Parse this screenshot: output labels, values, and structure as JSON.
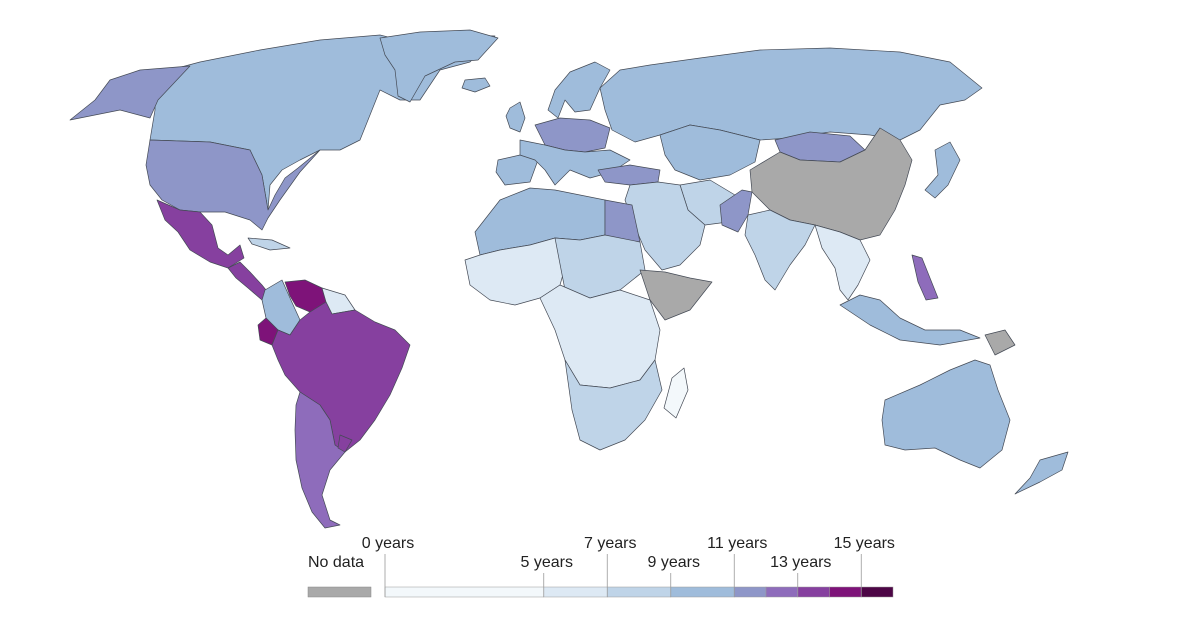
{
  "legend": {
    "no_data_label": "No data",
    "no_data_color": "#a9a9a9",
    "tick_labels": [
      "0 years",
      "5 years",
      "7 years",
      "9 years",
      "11 years",
      "13 years",
      "15 years"
    ],
    "bins": [
      {
        "from": 0,
        "to": 5,
        "color": "#f3f8fb"
      },
      {
        "from": 5,
        "to": 7,
        "color": "#dde9f4"
      },
      {
        "from": 7,
        "to": 9,
        "color": "#bfd4e8"
      },
      {
        "from": 9,
        "to": 11,
        "color": "#9fbcdb"
      },
      {
        "from": 11,
        "to": 12,
        "color": "#8e96c8"
      },
      {
        "from": 12,
        "to": 13,
        "color": "#8e6cbb"
      },
      {
        "from": 13,
        "to": 14,
        "color": "#86409f"
      },
      {
        "from": 14,
        "to": 15,
        "color": "#7e1379"
      },
      {
        "from": 15,
        "to": 16,
        "color": "#4d0646"
      }
    ]
  },
  "regions": [
    {
      "name": "north-america",
      "color": "#9fbcdb"
    },
    {
      "name": "united-states",
      "color": "#8e96c8"
    },
    {
      "name": "alaska",
      "color": "#8e96c8"
    },
    {
      "name": "greenland",
      "color": "#9fbcdb"
    },
    {
      "name": "mexico",
      "color": "#86409f"
    },
    {
      "name": "central-america",
      "color": "#86409f"
    },
    {
      "name": "cuba",
      "color": "#bfd4e8"
    },
    {
      "name": "colombia",
      "color": "#9fbcdb"
    },
    {
      "name": "venezuela",
      "color": "#7e1379"
    },
    {
      "name": "guianas",
      "color": "#dde9f4"
    },
    {
      "name": "ecuador",
      "color": "#7e1379"
    },
    {
      "name": "brazil-peru-bolivia",
      "color": "#86409f"
    },
    {
      "name": "argentina-chile",
      "color": "#8e6cbb"
    },
    {
      "name": "uruguay",
      "color": "#86409f"
    },
    {
      "name": "europe",
      "color": "#9fbcdb"
    },
    {
      "name": "central-europe",
      "color": "#8e96c8"
    },
    {
      "name": "iberia",
      "color": "#9fbcdb"
    },
    {
      "name": "scandinavia",
      "color": "#9fbcdb"
    },
    {
      "name": "uk",
      "color": "#9fbcdb"
    },
    {
      "name": "iceland",
      "color": "#9fbcdb"
    },
    {
      "name": "russia",
      "color": "#9fbcdb"
    },
    {
      "name": "central-asia",
      "color": "#9fbcdb"
    },
    {
      "name": "mongolia",
      "color": "#8e96c8"
    },
    {
      "name": "china",
      "color": "#a9a9a9"
    },
    {
      "name": "turkey",
      "color": "#8e96c8"
    },
    {
      "name": "middle-east",
      "color": "#bfd4e8"
    },
    {
      "name": "iran",
      "color": "#bfd4e8"
    },
    {
      "name": "pakistan",
      "color": "#8e96c8"
    },
    {
      "name": "india",
      "color": "#bfd4e8"
    },
    {
      "name": "southeast-asia",
      "color": "#dde9f4"
    },
    {
      "name": "philippines",
      "color": "#8e6cbb"
    },
    {
      "name": "indonesia",
      "color": "#9fbcdb"
    },
    {
      "name": "japan",
      "color": "#9fbcdb"
    },
    {
      "name": "papua-new-guinea",
      "color": "#a9a9a9"
    },
    {
      "name": "australia",
      "color": "#9fbcdb"
    },
    {
      "name": "new-zealand",
      "color": "#9fbcdb"
    },
    {
      "name": "north-africa",
      "color": "#9fbcdb"
    },
    {
      "name": "west-africa",
      "color": "#dde9f4"
    },
    {
      "name": "sahel",
      "color": "#bfd4e8"
    },
    {
      "name": "egypt",
      "color": "#8e96c8"
    },
    {
      "name": "horn-of-africa",
      "color": "#a9a9a9"
    },
    {
      "name": "central-africa",
      "color": "#dde9f4"
    },
    {
      "name": "southern-africa",
      "color": "#bfd4e8"
    },
    {
      "name": "madagascar",
      "color": "#f3f8fb"
    }
  ]
}
